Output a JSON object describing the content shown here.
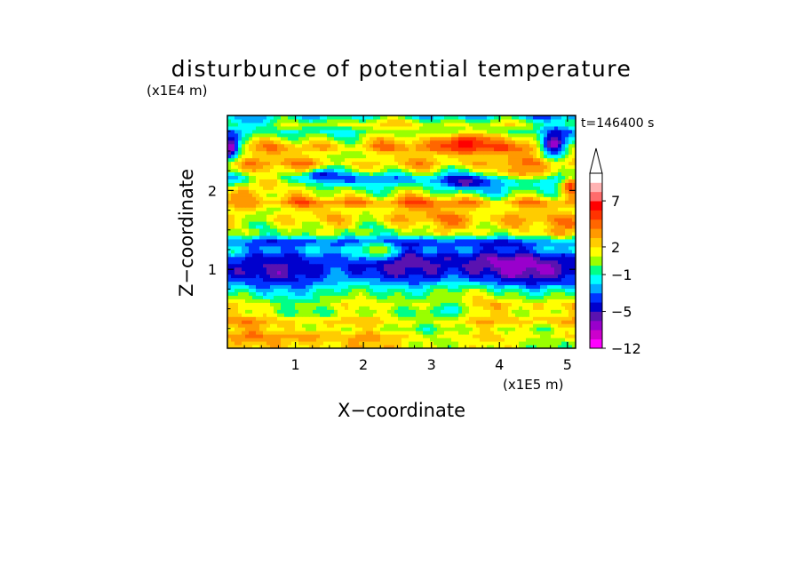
{
  "chart_data": {
    "type": "heatmap",
    "title": "disturbunce of potential temperature",
    "xlabel": "X−coordinate",
    "ylabel": "Z−coordinate",
    "x_unit": "(x1E5 m)",
    "y_unit": "(x1E4 m)",
    "time_label": "t=146400 s",
    "xlim": [
      0,
      5.12
    ],
    "ylim": [
      0,
      2.95
    ],
    "x_ticks": [
      1,
      2,
      3,
      4,
      5
    ],
    "y_ticks": [
      1,
      2
    ],
    "x_tick_labels": [
      "1",
      "2",
      "3",
      "4",
      "5"
    ],
    "y_tick_labels": [
      "1",
      "2"
    ],
    "colorbar": {
      "levels": [
        -12,
        -10,
        -8,
        -6,
        -5,
        -4,
        -3,
        -2,
        -1,
        0,
        1,
        2,
        3,
        4,
        5,
        6,
        7,
        8,
        9,
        10
      ],
      "labels": [
        "−12",
        "−5",
        "−1",
        "2",
        "7"
      ],
      "label_values": [
        -12,
        -5,
        -1,
        2,
        7
      ],
      "colors": [
        "#ff00ff",
        "#cc00cc",
        "#9900cc",
        "#5a12b0",
        "#0000cd",
        "#0033ff",
        "#00aaff",
        "#00ffff",
        "#00ff88",
        "#99ff00",
        "#ffff00",
        "#ffcc00",
        "#ff9900",
        "#ff6600",
        "#ff3300",
        "#ff0000",
        "#ff6b6b",
        "#ffb3b3",
        "#ffffff"
      ],
      "extend": "max"
    },
    "field_rows": [
      {
        "z": 0.05,
        "value": 1.5
      },
      {
        "z": 0.15,
        "value": 2.5
      },
      {
        "z": 0.25,
        "value": 1.2
      },
      {
        "z": 0.35,
        "value": 2.8
      },
      {
        "z": 0.45,
        "value": 0.8
      },
      {
        "z": 0.55,
        "value": 1.8
      },
      {
        "z": 0.65,
        "value": 0.2
      },
      {
        "z": 0.75,
        "value": -1.2
      },
      {
        "z": 0.85,
        "value": -3.5
      },
      {
        "z": 0.95,
        "value": -4.8
      },
      {
        "z": 1.05,
        "value": -5.2
      },
      {
        "z": 1.15,
        "value": -4.6
      },
      {
        "z": 1.25,
        "value": -2.5
      },
      {
        "z": 1.35,
        "value": -3.8
      },
      {
        "z": 1.45,
        "value": 0.8
      },
      {
        "z": 1.55,
        "value": 1.6
      },
      {
        "z": 1.65,
        "value": 2.6
      },
      {
        "z": 1.75,
        "value": 1.4
      },
      {
        "z": 1.85,
        "value": 3.5
      },
      {
        "z": 1.95,
        "value": 0.5
      },
      {
        "z": 2.05,
        "value": -0.9
      },
      {
        "z": 2.15,
        "value": -3.0
      },
      {
        "z": 2.25,
        "value": 1.2
      },
      {
        "z": 2.35,
        "value": 3.2
      },
      {
        "z": 2.45,
        "value": 2.0
      },
      {
        "z": 2.55,
        "value": 3.8
      },
      {
        "z": 2.65,
        "value": 1.5
      },
      {
        "z": 2.75,
        "value": -0.8
      },
      {
        "z": 2.85,
        "value": 1.0
      },
      {
        "z": 2.93,
        "value": -1.5
      }
    ],
    "features": [
      {
        "x": 3.5,
        "z": 2.6,
        "sx": 0.28,
        "sz": 0.14,
        "value": 7.0
      },
      {
        "x": 0.25,
        "z": 1.9,
        "sx": 0.3,
        "sz": 0.18,
        "value": 4.0
      },
      {
        "x": 5.05,
        "z": 2.05,
        "sx": 0.15,
        "sz": 0.15,
        "value": 5.5
      },
      {
        "x": 0.05,
        "z": 2.55,
        "sx": 0.12,
        "sz": 0.15,
        "value": -7.0
      },
      {
        "x": 4.8,
        "z": 2.6,
        "sx": 0.22,
        "sz": 0.2,
        "value": -6.5
      },
      {
        "x": 3.5,
        "z": 2.1,
        "sx": 0.25,
        "sz": 0.07,
        "value": -5.5
      },
      {
        "x": 1.4,
        "z": 2.2,
        "sx": 0.25,
        "sz": 0.08,
        "value": -4.5
      },
      {
        "x": 0.4,
        "z": 2.9,
        "sx": 0.35,
        "sz": 0.1,
        "value": -2.5
      },
      {
        "x": 0.6,
        "z": 2.1,
        "sx": 0.25,
        "sz": 0.12,
        "value": 3.0
      },
      {
        "x": 4.3,
        "z": 2.25,
        "sx": 0.4,
        "sz": 0.12,
        "value": 3.5
      },
      {
        "x": 2.2,
        "z": 1.25,
        "sx": 0.3,
        "sz": 0.12,
        "value": 1.0
      },
      {
        "x": 3.3,
        "z": 0.5,
        "sx": 0.25,
        "sz": 0.12,
        "value": -1.5
      },
      {
        "x": 1.2,
        "z": 0.15,
        "sx": 0.25,
        "sz": 0.08,
        "value": 3.5
      }
    ]
  }
}
